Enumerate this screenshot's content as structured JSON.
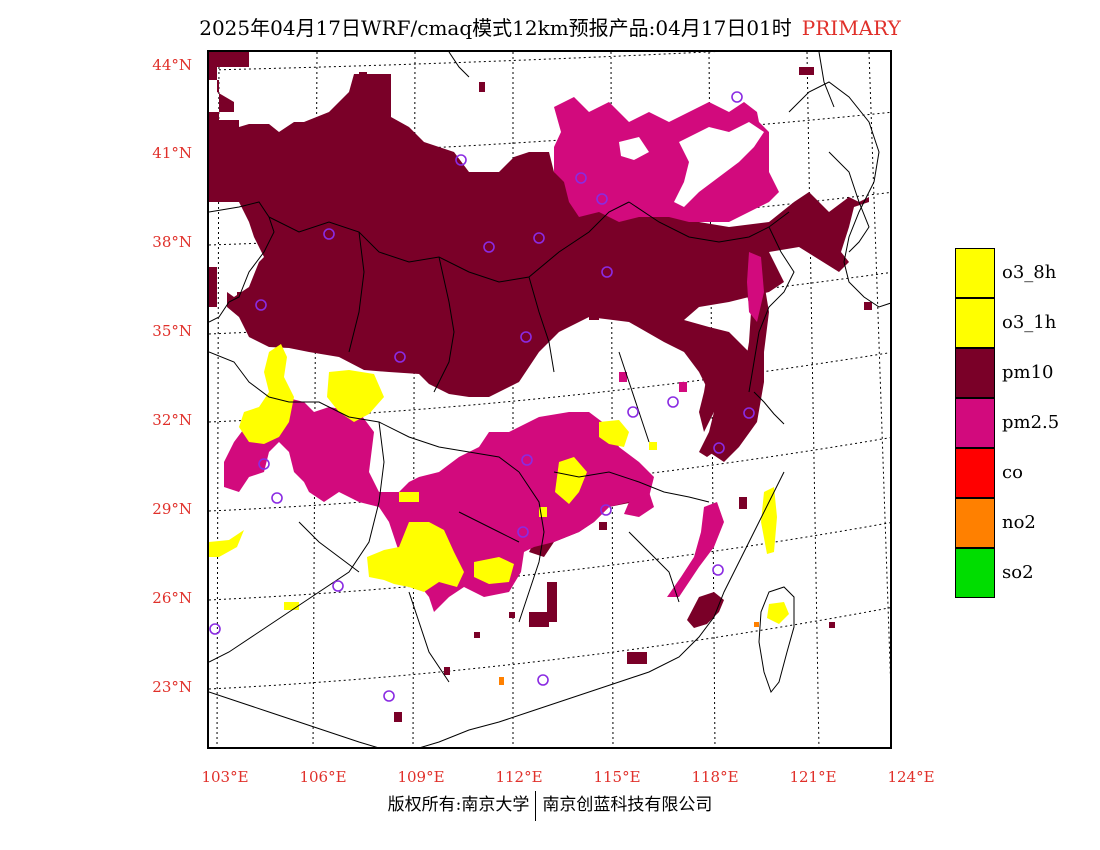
{
  "title": {
    "text": "2025年04月17日WRF/cmaq模式12km预报产品:04月17日01时",
    "tag": "PRIMARY"
  },
  "latitudes": [
    "44°N",
    "41°N",
    "38°N",
    "35°N",
    "32°N",
    "29°N",
    "26°N",
    "23°N"
  ],
  "longitudes": [
    "103°E",
    "106°E",
    "109°E",
    "112°E",
    "115°E",
    "118°E",
    "121°E",
    "124°E"
  ],
  "legend": [
    {
      "label": "o3_8h",
      "color": "#ffff00"
    },
    {
      "label": "o3_1h",
      "color": "#ffff00"
    },
    {
      "label": "pm10",
      "color": "#7a0028"
    },
    {
      "label": "pm2.5",
      "color": "#d20a7d"
    },
    {
      "label": "co",
      "color": "#ff0000"
    },
    {
      "label": "no2",
      "color": "#ff8000"
    },
    {
      "label": "so2",
      "color": "#00dd00"
    }
  ],
  "copyright": {
    "left": "版权所有:南京大学",
    "right": "南京创蓝科技有限公司"
  },
  "colors": {
    "pm10": "#7a0028",
    "pm25": "#d20a7d",
    "o3": "#ffff00",
    "no2": "#ff8000",
    "station": "#8a2be2",
    "axis_label": "#e0302a"
  }
}
